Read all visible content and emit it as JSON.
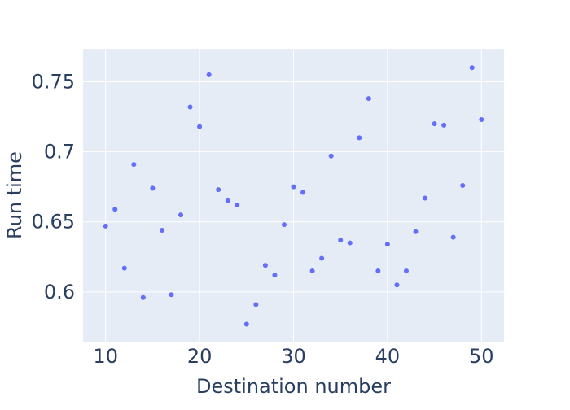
{
  "chart_data": {
    "type": "scatter",
    "title": "",
    "xlabel": "Destination number",
    "ylabel": "Run time",
    "xlim": [
      7.6,
      52.4
    ],
    "ylim": [
      0.5645,
      0.7735
    ],
    "xticks": [
      10,
      20,
      30,
      40,
      50
    ],
    "xtick_labels": [
      "10",
      "20",
      "30",
      "40",
      "50"
    ],
    "yticks": [
      0.6,
      0.65,
      0.7,
      0.75
    ],
    "ytick_labels": [
      "0.6",
      "0.65",
      "0.7",
      "0.75"
    ],
    "grid": true,
    "colors": {
      "plot_bg": "#e5ecf6",
      "grid": "#ffffff",
      "marker": "#636efa",
      "text": "#2a3f5f"
    },
    "series": [
      {
        "x": [
          10,
          11,
          12,
          13,
          14,
          15,
          16,
          17,
          18,
          19,
          20,
          21,
          22,
          23,
          24,
          25,
          26,
          27,
          28,
          29,
          30,
          31,
          32,
          33,
          34,
          35,
          36,
          37,
          38,
          39,
          40,
          41,
          42,
          43,
          44,
          45,
          46,
          47,
          48,
          49,
          50
        ],
        "y": [
          0.647,
          0.659,
          0.617,
          0.691,
          0.596,
          0.674,
          0.644,
          0.598,
          0.655,
          0.732,
          0.718,
          0.755,
          0.673,
          0.665,
          0.662,
          0.577,
          0.591,
          0.619,
          0.612,
          0.648,
          0.675,
          0.671,
          0.615,
          0.624,
          0.697,
          0.637,
          0.635,
          0.71,
          0.738,
          0.615,
          0.634,
          0.605,
          0.615,
          0.643,
          0.667,
          0.72,
          0.719,
          0.639,
          0.676,
          0.76,
          0.723
        ]
      }
    ]
  }
}
